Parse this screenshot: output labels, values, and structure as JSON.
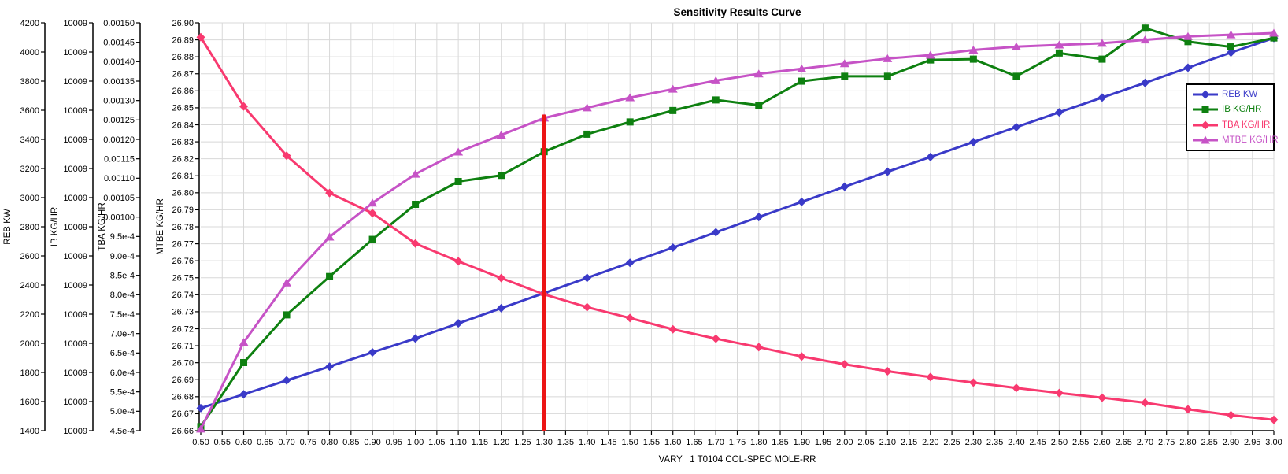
{
  "chart_data": {
    "type": "line",
    "title": "Sensitivity Results Curve",
    "xlabel": "VARY   1 T0104 COL-SPEC MOLE-RR",
    "grid": true,
    "grid_color": "#d8d8d8",
    "x_axis": {
      "min": 0.5,
      "max": 3.0,
      "tick_step": 0.05,
      "tick_labels": [
        "0.50",
        "0.55",
        "0.60",
        "0.65",
        "0.70",
        "0.75",
        "0.80",
        "0.85",
        "0.90",
        "0.95",
        "1.00",
        "1.05",
        "1.10",
        "1.15",
        "1.20",
        "1.25",
        "1.30",
        "1.35",
        "1.40",
        "1.45",
        "1.50",
        "1.55",
        "1.60",
        "1.65",
        "1.70",
        "1.75",
        "1.80",
        "1.85",
        "1.90",
        "1.95",
        "2.00",
        "2.05",
        "2.10",
        "2.15",
        "2.20",
        "2.25",
        "2.30",
        "2.35",
        "2.40",
        "2.45",
        "2.50",
        "2.55",
        "2.60",
        "2.65",
        "2.70",
        "2.75",
        "2.80",
        "2.85",
        "2.90",
        "2.95",
        "3.00"
      ]
    },
    "y_axes": [
      {
        "id": "reb",
        "label": "REB KW",
        "min": 1400,
        "max": 4200,
        "tick_labels": [
          "1400",
          "1600",
          "1800",
          "2000",
          "2200",
          "2400",
          "2600",
          "2800",
          "3000",
          "3200",
          "3400",
          "3600",
          "3800",
          "4000",
          "4200"
        ]
      },
      {
        "id": "ib",
        "label": "IB KG/HR",
        "tick_labels": [
          "10009",
          "10009",
          "10009",
          "10009",
          "10009",
          "10009",
          "10009",
          "10009",
          "10009",
          "10009",
          "10009",
          "10009",
          "10009",
          "10009",
          "10009"
        ],
        "note": "every visible tick label on this axis reads 10009"
      },
      {
        "id": "tba",
        "label": "TBA KG/HR",
        "min": 0.00045,
        "max": 0.0015,
        "tick_labels": [
          "4.5e-4",
          "5.0e-4",
          "5.5e-4",
          "6.0e-4",
          "6.5e-4",
          "7.0e-4",
          "7.5e-4",
          "8.0e-4",
          "8.5e-4",
          "9.0e-4",
          "9.5e-4",
          "0.00100",
          "0.00105",
          "0.00110",
          "0.00115",
          "0.00120",
          "0.00125",
          "0.00130",
          "0.00135",
          "0.00140",
          "0.00145",
          "0.00150"
        ]
      },
      {
        "id": "mtbe",
        "label": "MTBE KG/HR",
        "min": 26.66,
        "max": 26.9,
        "tick_labels": [
          "26.66",
          "26.67",
          "26.68",
          "26.69",
          "26.70",
          "26.71",
          "26.72",
          "26.73",
          "26.74",
          "26.75",
          "26.76",
          "26.77",
          "26.78",
          "26.79",
          "26.80",
          "26.81",
          "26.82",
          "26.83",
          "26.84",
          "26.85",
          "26.86",
          "26.87",
          "26.88",
          "26.89",
          "26.90"
        ]
      }
    ],
    "x": [
      0.5,
      0.6,
      0.7,
      0.8,
      0.9,
      1.0,
      1.1,
      1.2,
      1.3,
      1.4,
      1.5,
      1.6,
      1.7,
      1.8,
      1.9,
      2.0,
      2.1,
      2.2,
      2.3,
      2.4,
      2.5,
      2.6,
      2.7,
      2.8,
      2.9,
      3.0
    ],
    "series": [
      {
        "name": "REB KW",
        "axis": "reb",
        "color": "#3a3ac8",
        "marker": "diamond",
        "values": [
          1555,
          1650,
          1745,
          1840,
          1938,
          2033,
          2137,
          2241,
          2345,
          2449,
          2553,
          2657,
          2762,
          2867,
          2971,
          3075,
          3178,
          3279,
          3382,
          3484,
          3586,
          3687,
          3788,
          3892,
          3996,
          4096
        ]
      },
      {
        "name": "IB KG/HR",
        "axis": "ib",
        "color": "#0e8010",
        "marker": "square",
        "values_axis_fraction": [
          0.01,
          0.167,
          0.284,
          0.378,
          0.469,
          0.555,
          0.611,
          0.626,
          0.684,
          0.727,
          0.757,
          0.785,
          0.811,
          0.798,
          0.857,
          0.869,
          0.869,
          0.909,
          0.911,
          0.869,
          0.926,
          0.911,
          0.987,
          0.954,
          0.941,
          0.963
        ],
        "note": "axis tick labels all display 10009, so values are recorded as fraction of axis height"
      },
      {
        "name": "TBA KG/HR",
        "axis": "tba",
        "color": "#f8396f",
        "marker": "diamond",
        "values": [
          0.001463,
          0.001285,
          0.001158,
          0.001062,
          0.00101,
          0.000932,
          0.000886,
          0.000843,
          0.000801,
          0.000768,
          0.00074,
          0.000711,
          0.000687,
          0.000665,
          0.000641,
          0.000621,
          0.000603,
          0.000588,
          0.000574,
          0.00056,
          0.000547,
          0.000535,
          0.000522,
          0.000505,
          0.00049,
          0.000478
        ]
      },
      {
        "name": "MTBE KG/HR",
        "axis": "mtbe",
        "color": "#c653c6",
        "marker": "triangle",
        "values": [
          26.661,
          26.712,
          26.747,
          26.774,
          26.794,
          26.811,
          26.824,
          26.834,
          26.844,
          26.85,
          26.856,
          26.861,
          26.866,
          26.87,
          26.873,
          26.876,
          26.879,
          26.881,
          26.884,
          26.886,
          26.887,
          26.888,
          26.89,
          26.892,
          26.893,
          26.894
        ]
      }
    ],
    "annotations": [
      {
        "type": "vline",
        "x": 1.3,
        "color": "#ec1515",
        "from_fraction": 0.0,
        "to_fraction": 0.775,
        "width": 5
      }
    ],
    "legend": {
      "position": "upper-right",
      "entries": [
        "REB KW",
        "IB KG/HR",
        "TBA KG/HR",
        "MTBE KG/HR"
      ]
    }
  }
}
